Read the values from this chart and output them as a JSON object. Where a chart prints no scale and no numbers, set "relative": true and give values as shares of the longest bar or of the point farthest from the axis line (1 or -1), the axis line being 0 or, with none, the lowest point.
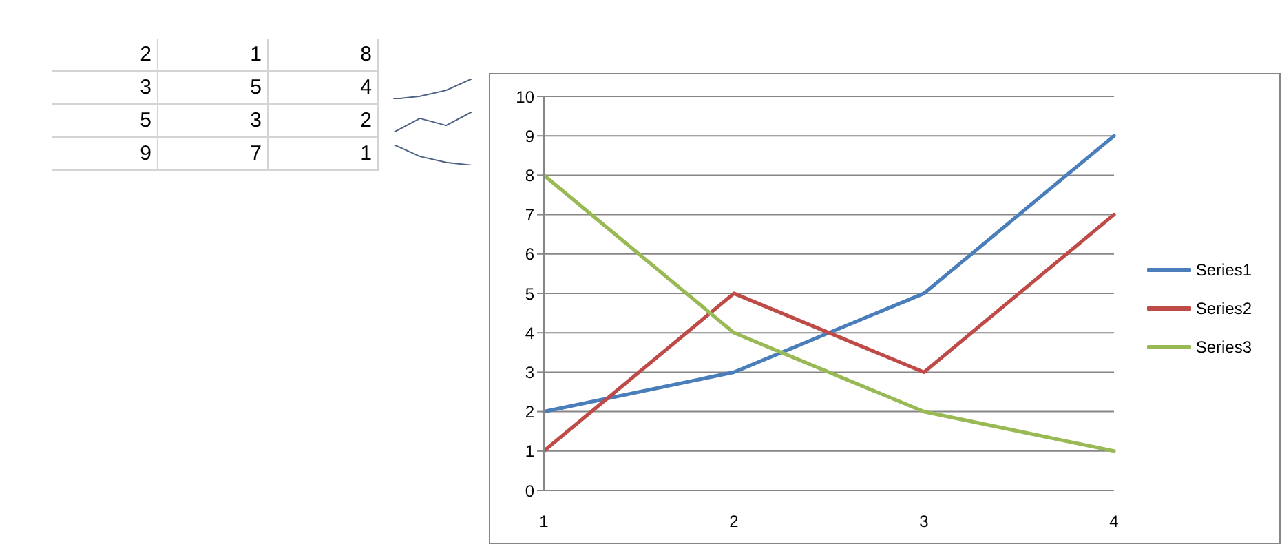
{
  "chart_data": [
    {
      "type": "other",
      "annotations": [
        "2",
        "1",
        "8",
        "3",
        "5",
        "4",
        "5",
        "3",
        "2",
        "9",
        "7",
        "1"
      ]
    },
    {
      "type": "line",
      "relative": true,
      "categories": [
        null,
        null,
        null,
        null
      ],
      "color": "#4f6284",
      "values": [
        0,
        0.14,
        0.43,
        1
      ]
    },
    {
      "type": "line",
      "relative": true,
      "categories": [
        null,
        null,
        null,
        null
      ],
      "color": "#4f6284",
      "values": [
        0,
        0.67,
        0.33,
        1
      ]
    },
    {
      "type": "line",
      "relative": true,
      "categories": [
        null,
        null,
        null,
        null
      ],
      "color": "#4f6284",
      "values": [
        1,
        0.43,
        0.14,
        0
      ]
    },
    {
      "type": "line",
      "categories": [
        "1",
        "2",
        "3",
        "4"
      ],
      "series": [
        {
          "name": "Series1",
          "color": "#4a7ebb",
          "values": [
            2,
            3,
            5,
            9
          ]
        },
        {
          "name": "Series2",
          "color": "#be4b48",
          "values": [
            1,
            5,
            3,
            7
          ]
        },
        {
          "name": "Series3",
          "color": "#98b954",
          "values": [
            8,
            4,
            2,
            1
          ]
        }
      ],
      "ylim": [
        0,
        10
      ],
      "yticks": [
        0,
        1,
        2,
        3,
        4,
        5,
        6,
        7,
        8,
        9,
        10
      ],
      "grid": "y",
      "legend": "right"
    }
  ]
}
